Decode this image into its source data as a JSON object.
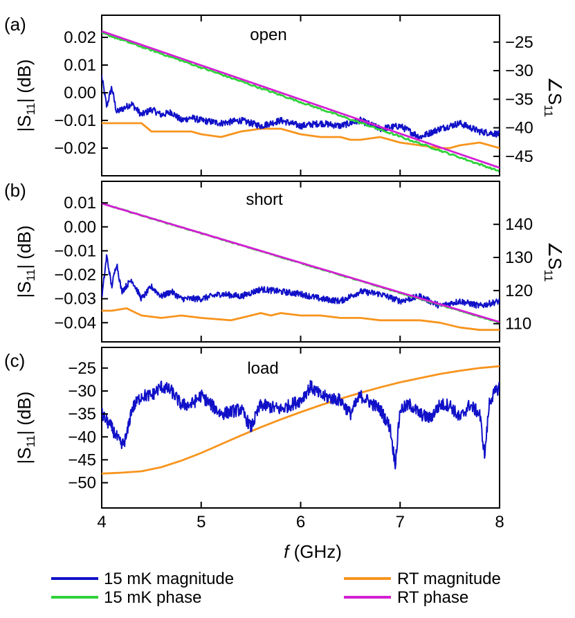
{
  "chart_data": {
    "type": "line",
    "xlabel": {
      "italic": "f",
      "rest": " (GHz)"
    },
    "x_ticks": [
      "4",
      "5",
      "6",
      "7",
      "8"
    ],
    "xlim": [
      4,
      8
    ],
    "legend": {
      "placement": "bottom",
      "items": [
        {
          "key": "mk_mag",
          "label": "15 mK magnitude",
          "color": "#1010c8"
        },
        {
          "key": "rt_mag",
          "label": "RT magnitude",
          "color": "#f7941d"
        },
        {
          "key": "mk_phase",
          "label": "15 mK phase",
          "color": "#2fd23a"
        },
        {
          "key": "rt_phase",
          "label": "RT phase",
          "color": "#d41fd4"
        }
      ]
    },
    "panels": [
      {
        "id": "a",
        "panel_label": "(a)",
        "annotation": "open",
        "ylabel": {
          "main": "|S",
          "sub": "11",
          "tail": "| (dB)"
        },
        "ylim": [
          -0.03,
          0.028
        ],
        "y_ticks": [
          0.02,
          0.01,
          0.0,
          -0.01,
          -0.02
        ],
        "y_tick_labels": [
          "0.02",
          "0.01",
          "0.00",
          "−0.01",
          "−0.02"
        ],
        "right_ylabel": {
          "main": "∠S",
          "sub": "11"
        },
        "right_ylim": [
          -48.4,
          -20.3
        ],
        "right_y_ticks": [
          -25,
          -30,
          -35,
          -40,
          -45
        ],
        "right_y_tick_labels": [
          "−25",
          "−30",
          "−35",
          "−40",
          "−45"
        ],
        "series": {
          "mk_mag": {
            "x": [
              4.0,
              4.05,
              4.1,
              4.15,
              4.2,
              4.3,
              4.4,
              4.5,
              4.6,
              4.7,
              4.8,
              4.9,
              5.0,
              5.2,
              5.4,
              5.6,
              5.8,
              6.0,
              6.2,
              6.4,
              6.6,
              6.8,
              7.0,
              7.2,
              7.4,
              7.6,
              7.8,
              8.0
            ],
            "y": [
              0.006,
              -0.005,
              0.002,
              -0.007,
              -0.006,
              -0.004,
              -0.008,
              -0.006,
              -0.008,
              -0.007,
              -0.01,
              -0.009,
              -0.01,
              -0.011,
              -0.01,
              -0.012,
              -0.01,
              -0.012,
              -0.011,
              -0.012,
              -0.01,
              -0.013,
              -0.012,
              -0.016,
              -0.013,
              -0.011,
              -0.014,
              -0.015
            ],
            "noise_amplitude": 0.0012
          },
          "rt_mag": {
            "x": [
              4.0,
              4.1,
              4.4,
              4.5,
              4.7,
              4.9,
              5.0,
              5.2,
              5.4,
              5.6,
              5.8,
              6.0,
              6.2,
              6.4,
              6.5,
              6.6,
              6.8,
              7.0,
              7.2,
              7.4,
              7.5,
              7.6,
              7.8,
              8.0
            ],
            "y": [
              -0.011,
              -0.011,
              -0.011,
              -0.014,
              -0.014,
              -0.014,
              -0.015,
              -0.016,
              -0.014,
              -0.013,
              -0.013,
              -0.015,
              -0.016,
              -0.016,
              -0.017,
              -0.017,
              -0.016,
              -0.018,
              -0.019,
              -0.02,
              -0.02,
              -0.019,
              -0.018,
              -0.02
            ]
          },
          "mk_phase": {
            "x": [
              4.0,
              8.0
            ],
            "y": [
              -23.4,
              -47.6
            ],
            "noise_amplitude": 0.15
          },
          "rt_phase": {
            "x": [
              4.0,
              8.0
            ],
            "y": [
              -23.1,
              -47.0
            ]
          }
        }
      },
      {
        "id": "b",
        "panel_label": "(b)",
        "annotation": "short",
        "ylabel": {
          "main": "|S",
          "sub": "11",
          "tail": "| (dB)"
        },
        "ylim": [
          -0.048,
          0.019
        ],
        "y_ticks": [
          0.01,
          0.0,
          -0.01,
          -0.02,
          -0.03,
          -0.04
        ],
        "y_tick_labels": [
          "0.01",
          "0.00",
          "−0.01",
          "−0.02",
          "−0.03",
          "−0.04"
        ],
        "right_ylabel": {
          "main": "∠S",
          "sub": "11"
        },
        "right_ylim": [
          104.5,
          153.0
        ],
        "right_y_ticks": [
          140,
          130,
          120,
          110
        ],
        "right_y_tick_labels": [
          "140",
          "130",
          "120",
          "110"
        ],
        "series": {
          "mk_mag": {
            "x": [
              4.0,
              4.05,
              4.1,
              4.15,
              4.2,
              4.3,
              4.4,
              4.5,
              4.6,
              4.7,
              4.8,
              5.0,
              5.2,
              5.4,
              5.6,
              5.8,
              6.0,
              6.2,
              6.4,
              6.6,
              6.8,
              7.0,
              7.2,
              7.4,
              7.6,
              7.8,
              8.0
            ],
            "y": [
              -0.03,
              -0.012,
              -0.025,
              -0.015,
              -0.027,
              -0.022,
              -0.03,
              -0.025,
              -0.029,
              -0.027,
              -0.03,
              -0.03,
              -0.028,
              -0.029,
              -0.026,
              -0.027,
              -0.028,
              -0.03,
              -0.031,
              -0.027,
              -0.028,
              -0.031,
              -0.029,
              -0.033,
              -0.031,
              -0.033,
              -0.031
            ],
            "noise_amplitude": 0.0013
          },
          "rt_mag": {
            "x": [
              4.0,
              4.1,
              4.25,
              4.4,
              4.6,
              4.8,
              5.0,
              5.3,
              5.4,
              5.6,
              5.7,
              5.8,
              6.0,
              6.2,
              6.4,
              6.6,
              6.8,
              7.0,
              7.2,
              7.4,
              7.6,
              7.8,
              8.0
            ],
            "y": [
              -0.035,
              -0.035,
              -0.034,
              -0.037,
              -0.038,
              -0.037,
              -0.038,
              -0.039,
              -0.038,
              -0.036,
              -0.037,
              -0.036,
              -0.037,
              -0.037,
              -0.038,
              -0.038,
              -0.039,
              -0.039,
              -0.039,
              -0.04,
              -0.042,
              -0.043,
              -0.043
            ]
          },
          "mk_phase": {
            "x": [
              4.0,
              8.0
            ],
            "y": [
              146.3,
              110.3
            ],
            "noise_amplitude": 0.15
          },
          "rt_phase": {
            "x": [
              4.0,
              8.0
            ],
            "y": [
              146.3,
              110.5
            ]
          }
        }
      },
      {
        "id": "c",
        "panel_label": "(c)",
        "annotation": "load",
        "ylabel": {
          "main": "|S",
          "sub": "11",
          "tail": "| (dB)"
        },
        "ylim": [
          -55.5,
          -20.5
        ],
        "y_ticks": [
          -25,
          -30,
          -35,
          -40,
          -45,
          -50
        ],
        "y_tick_labels": [
          "−25",
          "−30",
          "−35",
          "−40",
          "−45",
          "−50"
        ],
        "series": {
          "mk_mag": {
            "x": [
              4.0,
              4.1,
              4.15,
              4.2,
              4.25,
              4.3,
              4.4,
              4.5,
              4.6,
              4.7,
              4.8,
              4.9,
              5.0,
              5.2,
              5.4,
              5.5,
              5.6,
              5.8,
              6.0,
              6.1,
              6.2,
              6.4,
              6.5,
              6.6,
              6.8,
              6.9,
              6.95,
              7.0,
              7.1,
              7.2,
              7.3,
              7.4,
              7.5,
              7.6,
              7.7,
              7.8,
              7.85,
              7.9,
              8.0
            ],
            "y": [
              -35,
              -38,
              -40,
              -42,
              -40,
              -34,
              -31,
              -31,
              -29,
              -30,
              -33,
              -33,
              -31,
              -35,
              -34,
              -38,
              -33,
              -34,
              -32,
              -29,
              -31,
              -32,
              -35,
              -31,
              -34,
              -38,
              -46,
              -34,
              -33,
              -35,
              -36,
              -33,
              -33,
              -36,
              -33,
              -35,
              -44,
              -32,
              -29
            ],
            "noise_amplitude": 1.4
          },
          "rt_mag": {
            "x": [
              4.0,
              4.2,
              4.4,
              4.6,
              4.8,
              5.0,
              5.2,
              5.4,
              5.6,
              5.8,
              6.0,
              6.2,
              6.4,
              6.6,
              6.8,
              7.0,
              7.2,
              7.4,
              7.6,
              7.8,
              8.0
            ],
            "y": [
              -48.0,
              -47.8,
              -47.5,
              -46.6,
              -45.2,
              -43.5,
              -41.6,
              -39.7,
              -37.9,
              -36.2,
              -34.6,
              -33.1,
              -31.7,
              -30.4,
              -29.2,
              -28.1,
              -27.2,
              -26.3,
              -25.6,
              -25.0,
              -24.6
            ]
          }
        }
      }
    ]
  }
}
